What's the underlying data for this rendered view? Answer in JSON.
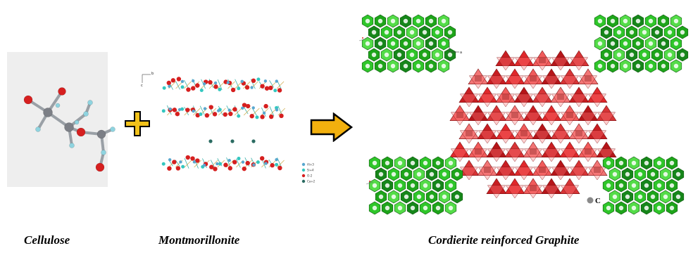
{
  "captions": {
    "cellulose": "Cellulose",
    "montmorillonite": "Montmorillonite",
    "product": "Cordierite reinforced Graphite"
  },
  "montmorillonite_legend": [
    "Al+3",
    "Si+4",
    "O-2",
    "Ca+2"
  ],
  "axis_labels": {
    "a": "a",
    "b": "b",
    "c": "c"
  },
  "carbon_label": "C",
  "colors": {
    "oxygen": "#d61f1f",
    "carbon_atom": "#7c7f86",
    "hydrogen": "#8fd4e0",
    "silicon": "#34c7c0",
    "aluminium": "#59a7cf",
    "calcium": "#2b6b62",
    "cordierite": "#e0282b",
    "graphite_cluster": "#2fc62a",
    "arrow_fill": "#f2b00e",
    "plus_fill": "#f2c21a"
  }
}
